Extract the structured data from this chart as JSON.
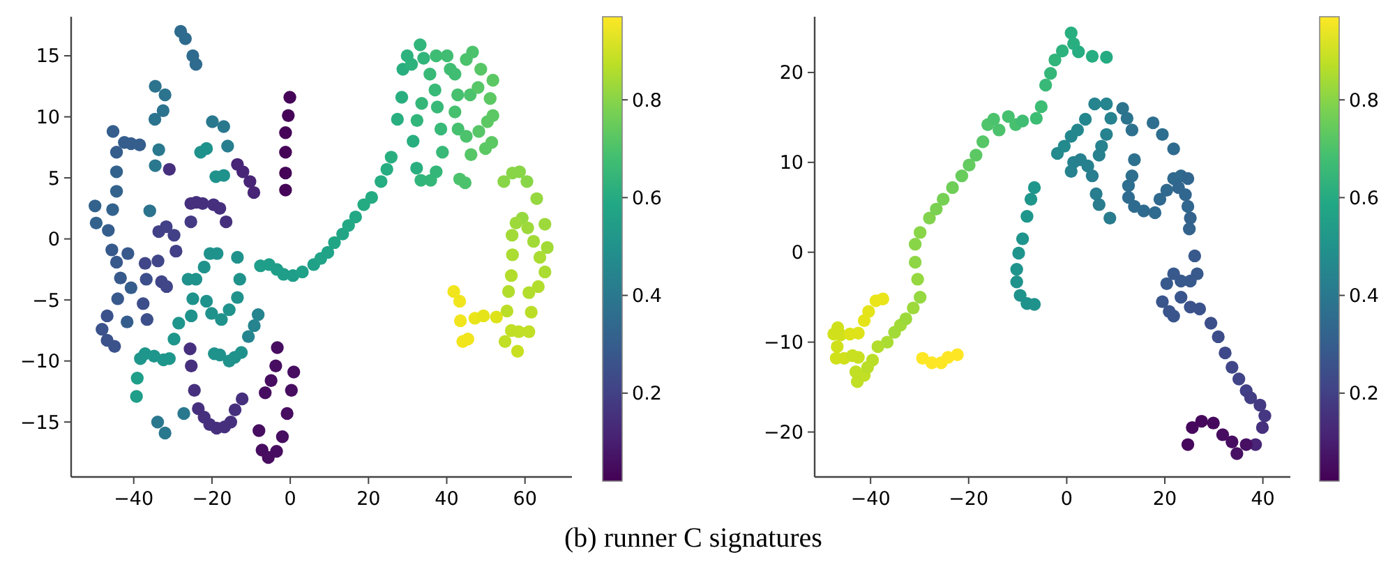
{
  "chart_data": [
    {
      "type": "scatter",
      "xlim": [
        -56,
        72
      ],
      "ylim": [
        -19.5,
        18.2
      ],
      "xticks": [
        -40,
        -20,
        0,
        20,
        40,
        60
      ],
      "yticks": [
        -15,
        -10,
        -5,
        0,
        5,
        10,
        15
      ],
      "clim": [
        0.02,
        0.97
      ],
      "cticks": [
        0.2,
        0.4,
        0.6,
        0.8
      ],
      "marker": "circle",
      "annotations": [
        "(b) runner C signatures"
      ],
      "x": [
        -28.0,
        -26.8,
        -24.9,
        -24.1,
        -34.5,
        -32.0,
        -32.5,
        -34.6,
        -33.6,
        -34.5,
        -30.9,
        -45.3,
        -44.4,
        -42.4,
        -40.7,
        -38.5,
        -44.4,
        -44.4,
        -45.4,
        -49.9,
        -49.6,
        -46.5,
        -45.6,
        -44.4,
        -43.4,
        -44.1,
        -46.8,
        -48.1,
        -46.8,
        -44.9,
        -40.7,
        -41.5,
        -41.7,
        -35.9,
        -33.6,
        -31.7,
        -29.7,
        -29.2,
        -37.1,
        -33.8,
        -36.8,
        -32.9,
        -31.6,
        -37.6,
        -36.6,
        -25.4,
        -24.0,
        -22.4,
        -19.6,
        -18.0,
        -16.4,
        -25.4,
        -13.5,
        -12.1,
        -10.3,
        -9.3,
        -19.9,
        -17.0,
        -16.0,
        -22.9,
        -21.4,
        -19.0,
        -17.0,
        -20.5,
        -18.7,
        -13.5,
        -22.0,
        -26.1,
        -24.1,
        -12.9,
        -24.9,
        -21.4,
        -20.1,
        -17.6,
        -15.6,
        -13.5,
        -25.3,
        -28.5,
        -29.7,
        -8.2,
        -9.2,
        -10.7,
        -19.4,
        -18.0,
        -15.6,
        -14.2,
        -12.5,
        -38.3,
        -37.1,
        -34.8,
        -32.4,
        -30.9,
        -39.1,
        -39.3,
        -33.9,
        -32.0,
        -27.2,
        -25.6,
        -25.3,
        -24.5,
        -23.5,
        -22.0,
        -20.6,
        -18.8,
        -16.8,
        -15.2,
        -14.1,
        -12.3,
        -3.3,
        -3.7,
        -4.9,
        -6.4,
        -8.0,
        -7.2,
        -5.6,
        -3.5,
        -2.0,
        -0.8,
        0.3,
        0.9,
        -0.1,
        -0.5,
        -1.2,
        -1.2,
        -1.2,
        -1.2,
        -7.6,
        -5.4,
        -3.4,
        -1.7,
        0.7,
        3.1,
        6.0,
        7.8,
        9.6,
        11.3,
        13.4,
        14.9,
        16.7,
        18.8,
        20.8,
        23.2,
        24.7,
        25.8,
        27.4,
        28.5,
        28.8,
        29.9,
        31.0,
        33.2,
        34.1,
        32.3,
        31.4,
        33.4,
        35.9,
        37.3,
        32.4,
        33.6,
        35.7,
        37.0,
        37.6,
        38.5,
        38.9,
        37.3,
        40.1,
        40.9,
        42.1,
        42.8,
        42.1,
        42.9,
        45.0,
        46.0,
        45.0,
        46.6,
        48.7,
        48.0,
        51.8,
        51.1,
        51.8,
        50.4,
        48.2,
        46.2,
        49.9,
        51.5,
        43.3,
        44.7,
        54.6,
        56.8,
        58.6,
        60.5,
        63.0,
        59.3,
        57.7,
        60.7,
        65.1,
        56.7,
        62.2,
        65.7,
        56.8,
        63.8,
        65.1,
        56.5,
        55.8,
        63.4,
        61.0,
        55.4,
        61.6,
        56.5,
        58.4,
        61.0,
        54.9,
        58.1,
        41.8,
        43.3,
        43.5,
        44.1,
        45.4,
        47.2,
        49.4,
        52.7
      ],
      "values": [
        17.0,
        16.4,
        15.0,
        14.3,
        12.5,
        11.8,
        10.5,
        9.8,
        7.3,
        6.0,
        5.7,
        8.8,
        7.1,
        7.9,
        7.8,
        7.7,
        5.5,
        3.9,
        2.4,
        2.7,
        1.3,
        0.7,
        -0.9,
        -1.9,
        -3.2,
        -4.9,
        -6.3,
        -7.4,
        -8.3,
        -8.8,
        -4.0,
        -1.2,
        -6.8,
        2.3,
        0.6,
        1.0,
        0.3,
        -1.0,
        -2.0,
        -1.8,
        -3.3,
        -3.5,
        -3.9,
        -5.3,
        -6.6,
        2.9,
        3.0,
        2.9,
        2.8,
        2.5,
        1.4,
        1.4,
        6.1,
        5.5,
        4.7,
        3.8,
        9.6,
        9.2,
        7.6,
        7.1,
        7.4,
        5.1,
        5.2,
        -1.2,
        -1.2,
        -1.5,
        -2.3,
        -3.3,
        -3.3,
        -3.3,
        -4.9,
        -5.1,
        -6.1,
        -6.6,
        -5.8,
        -4.8,
        -6.3,
        -6.9,
        -8.2,
        -6.2,
        -7.1,
        -8.0,
        -9.4,
        -9.5,
        -10.0,
        -9.7,
        -9.3,
        -9.8,
        -9.4,
        -9.6,
        -9.9,
        -9.8,
        -11.4,
        -12.9,
        -15.0,
        -15.9,
        -14.3,
        -9.0,
        -10.4,
        -12.4,
        -13.9,
        -14.6,
        -15.2,
        -15.5,
        -15.4,
        -15.0,
        -14.0,
        -13.1,
        -8.9,
        -10.4,
        -11.6,
        -12.6,
        -15.7,
        -17.3,
        -17.9,
        -17.4,
        -16.2,
        -14.3,
        -12.4,
        -10.9,
        11.6,
        10.1,
        8.7,
        7.1,
        5.4,
        4.0,
        -2.2,
        -2.1,
        -2.5,
        -2.9,
        -3.0,
        -2.7,
        -2.1,
        -1.6,
        -1.1,
        -0.3,
        0.4,
        1.1,
        1.8,
        2.8,
        3.4,
        4.7,
        5.7,
        6.7,
        9.8,
        11.6,
        13.9,
        15.0,
        14.3,
        15.9,
        14.8,
        5.8,
        8.0,
        4.8,
        4.8,
        5.5,
        9.7,
        11.1,
        13.5,
        12.2,
        10.8,
        9.0,
        7.1,
        15.0,
        15.0,
        13.9,
        13.5,
        11.8,
        10.4,
        9.0,
        8.4,
        11.8,
        14.7,
        15.3,
        13.9,
        12.4,
        13.0,
        11.5,
        10.1,
        9.6,
        8.8,
        6.9,
        7.4,
        7.9,
        4.9,
        4.6,
        4.7,
        5.4,
        5.5,
        4.7,
        3.3,
        1.7,
        1.3,
        0.9,
        1.2,
        0.3,
        -0.2,
        -0.7,
        -1.3,
        -1.5,
        -2.7,
        -3.0,
        -4.3,
        -3.9,
        -4.4,
        -5.9,
        -6.0,
        -7.5,
        -7.6,
        -7.6,
        -8.4,
        -9.2,
        -4.3,
        -5.1,
        -6.7,
        -8.4,
        -8.2,
        -6.5,
        -6.3,
        -6.4
      ],
      "cvalues": [
        0.35,
        0.35,
        0.35,
        0.35,
        0.38,
        0.38,
        0.38,
        0.38,
        0.4,
        0.4,
        0.15,
        0.3,
        0.3,
        0.3,
        0.3,
        0.3,
        0.32,
        0.32,
        0.32,
        0.32,
        0.32,
        0.3,
        0.28,
        0.28,
        0.28,
        0.28,
        0.26,
        0.26,
        0.26,
        0.26,
        0.3,
        0.28,
        0.3,
        0.38,
        0.2,
        0.2,
        0.2,
        0.2,
        0.22,
        0.22,
        0.25,
        0.22,
        0.22,
        0.25,
        0.25,
        0.15,
        0.15,
        0.15,
        0.15,
        0.15,
        0.15,
        0.18,
        0.12,
        0.12,
        0.12,
        0.12,
        0.4,
        0.4,
        0.42,
        0.5,
        0.5,
        0.5,
        0.5,
        0.5,
        0.5,
        0.5,
        0.5,
        0.5,
        0.5,
        0.5,
        0.5,
        0.5,
        0.5,
        0.5,
        0.5,
        0.5,
        0.5,
        0.52,
        0.52,
        0.45,
        0.45,
        0.45,
        0.5,
        0.5,
        0.5,
        0.5,
        0.5,
        0.52,
        0.52,
        0.52,
        0.52,
        0.52,
        0.55,
        0.55,
        0.4,
        0.4,
        0.4,
        0.15,
        0.15,
        0.15,
        0.15,
        0.15,
        0.15,
        0.15,
        0.15,
        0.15,
        0.15,
        0.15,
        0.05,
        0.05,
        0.05,
        0.05,
        0.05,
        0.05,
        0.05,
        0.05,
        0.05,
        0.05,
        0.05,
        0.05,
        0.03,
        0.03,
        0.03,
        0.03,
        0.03,
        0.03,
        0.55,
        0.55,
        0.55,
        0.55,
        0.55,
        0.56,
        0.56,
        0.57,
        0.57,
        0.58,
        0.58,
        0.59,
        0.59,
        0.6,
        0.6,
        0.61,
        0.61,
        0.62,
        0.62,
        0.62,
        0.62,
        0.63,
        0.63,
        0.64,
        0.64,
        0.62,
        0.62,
        0.64,
        0.65,
        0.65,
        0.64,
        0.65,
        0.66,
        0.66,
        0.66,
        0.66,
        0.66,
        0.67,
        0.68,
        0.68,
        0.68,
        0.69,
        0.69,
        0.69,
        0.7,
        0.7,
        0.7,
        0.7,
        0.72,
        0.72,
        0.73,
        0.73,
        0.73,
        0.73,
        0.72,
        0.72,
        0.73,
        0.73,
        0.7,
        0.7,
        0.8,
        0.8,
        0.8,
        0.8,
        0.82,
        0.82,
        0.83,
        0.83,
        0.83,
        0.84,
        0.84,
        0.84,
        0.85,
        0.85,
        0.85,
        0.86,
        0.86,
        0.86,
        0.86,
        0.87,
        0.87,
        0.88,
        0.88,
        0.88,
        0.88,
        0.89,
        0.95,
        0.95,
        0.95,
        0.95,
        0.95,
        0.94,
        0.93,
        0.92
      ]
    },
    {
      "type": "scatter",
      "xlim": [
        -51.4,
        45.6
      ],
      "ylim": [
        -25,
        26.2
      ],
      "xticks": [
        -40,
        -20,
        0,
        20,
        40
      ],
      "yticks": [
        -20,
        -10,
        0,
        10,
        20
      ],
      "clim": [
        0.02,
        0.97
      ],
      "cticks": [
        0.2,
        0.4,
        0.6,
        0.8
      ],
      "marker": "circle",
      "x": [
        -47.5,
        -46.7,
        -46.1,
        -46.8,
        -47.0,
        -45.4,
        -43.7,
        -42.5,
        -43.0,
        -42.7,
        -41.3,
        -40.6,
        -39.6,
        -44.2,
        -42.5,
        -41.3,
        -40.4,
        -38.9,
        -37.5,
        -38.5,
        -36.6,
        -35.1,
        -33.9,
        -32.8,
        -31.3,
        -29.9,
        -30.4,
        -30.9,
        -30.9,
        -29.9,
        -28.0,
        -26.6,
        -25.2,
        -23.3,
        -21.4,
        -19.9,
        -18.5,
        -17.1,
        -16.1,
        -14.9,
        -13.8,
        -11.9,
        -10.4,
        -9.0,
        -6.2,
        -5.2,
        -4.3,
        -3.3,
        -2.4,
        -0.9,
        0.9,
        1.4,
        2.4,
        5.2,
        8.1,
        -29.4,
        -27.5,
        -25.6,
        -24.2,
        -22.3,
        -6.6,
        -7.3,
        -8.1,
        -9.0,
        -9.8,
        -10.2,
        -10.2,
        -9.5,
        -8.1,
        -6.6,
        -1.9,
        -0.5,
        0.9,
        2.2,
        3.8,
        5.7,
        8.1,
        9.0,
        8.1,
        7.1,
        6.6,
        1.4,
        0.9,
        2.8,
        4.3,
        5.2,
        6.0,
        6.6,
        8.8,
        11.4,
        12.3,
        13.3,
        13.8,
        13.3,
        12.6,
        12.6,
        13.8,
        15.7,
        18.0,
        19.0,
        20.4,
        21.8,
        23.3,
        24.7,
        22.8,
        24.2,
        24.7,
        25.2,
        25.0,
        17.6,
        19.5,
        21.8,
        26.1,
        26.6,
        25.2,
        23.3,
        21.8,
        20.4,
        19.5,
        20.9,
        21.8,
        23.3,
        25.2,
        27.1,
        29.4,
        30.9,
        32.3,
        33.7,
        35.1,
        36.6,
        37.5,
        39.4,
        40.4,
        39.9,
        38.5,
        36.6,
        34.7,
        33.7,
        31.8,
        29.9,
        27.5,
        25.6,
        24.7
      ],
      "values": [
        -9.1,
        -8.4,
        -9.2,
        -10.5,
        -11.8,
        -11.8,
        -11.5,
        -11.7,
        -13.3,
        -14.4,
        -13.7,
        -12.8,
        -12.0,
        -9.1,
        -9.0,
        -7.6,
        -6.6,
        -5.4,
        -5.2,
        -10.5,
        -10.0,
        -8.9,
        -8.1,
        -7.4,
        -6.2,
        -5.0,
        -3.0,
        -1.1,
        0.9,
        2.2,
        3.8,
        4.8,
        5.9,
        7.2,
        8.5,
        9.7,
        10.8,
        12.3,
        14.2,
        14.8,
        13.6,
        15.1,
        14.2,
        14.6,
        14.9,
        16.2,
        18.6,
        19.9,
        21.4,
        22.4,
        24.4,
        23.2,
        22.3,
        21.8,
        21.7,
        -11.8,
        -12.3,
        -12.3,
        -11.7,
        -11.4,
        7.2,
        5.9,
        4.0,
        1.5,
        -0.1,
        -1.9,
        -3.3,
        -4.8,
        -5.7,
        -5.8,
        11.0,
        11.8,
        12.9,
        13.6,
        14.8,
        16.5,
        16.5,
        14.9,
        13.1,
        11.8,
        10.8,
        10.0,
        9.0,
        10.3,
        9.6,
        8.5,
        6.5,
        5.3,
        3.8,
        16.0,
        14.9,
        13.6,
        10.3,
        8.5,
        7.4,
        6.1,
        5.1,
        4.6,
        4.4,
        5.9,
        6.9,
        8.2,
        8.5,
        8.2,
        7.2,
        6.4,
        5.1,
        3.8,
        2.6,
        14.4,
        13.1,
        11.5,
        -0.4,
        -2.4,
        -3.2,
        -3.2,
        -2.4,
        -3.5,
        -5.5,
        -6.6,
        -7.1,
        -5.0,
        -6.1,
        -6.3,
        -7.9,
        -9.4,
        -11.2,
        -12.8,
        -14.1,
        -15.4,
        -16.2,
        -17.0,
        -18.2,
        -19.5,
        -21.4,
        -21.4,
        -22.4,
        -21.1,
        -20.3,
        -19.0,
        -18.8,
        -19.5,
        -21.4
      ],
      "cvalues": [
        0.9,
        0.9,
        0.9,
        0.9,
        0.9,
        0.9,
        0.89,
        0.89,
        0.88,
        0.88,
        0.88,
        0.87,
        0.87,
        0.92,
        0.92,
        0.93,
        0.93,
        0.94,
        0.94,
        0.86,
        0.85,
        0.84,
        0.84,
        0.83,
        0.83,
        0.82,
        0.82,
        0.81,
        0.8,
        0.8,
        0.79,
        0.78,
        0.77,
        0.76,
        0.75,
        0.74,
        0.73,
        0.72,
        0.71,
        0.7,
        0.7,
        0.69,
        0.69,
        0.68,
        0.67,
        0.67,
        0.66,
        0.65,
        0.64,
        0.63,
        0.62,
        0.62,
        0.61,
        0.61,
        0.6,
        0.97,
        0.97,
        0.97,
        0.97,
        0.97,
        0.52,
        0.52,
        0.52,
        0.51,
        0.51,
        0.51,
        0.5,
        0.5,
        0.5,
        0.5,
        0.47,
        0.47,
        0.46,
        0.46,
        0.46,
        0.45,
        0.45,
        0.44,
        0.44,
        0.44,
        0.43,
        0.44,
        0.44,
        0.43,
        0.43,
        0.42,
        0.42,
        0.41,
        0.41,
        0.38,
        0.38,
        0.37,
        0.37,
        0.36,
        0.36,
        0.35,
        0.35,
        0.35,
        0.35,
        0.34,
        0.34,
        0.34,
        0.34,
        0.33,
        0.33,
        0.33,
        0.33,
        0.32,
        0.32,
        0.36,
        0.36,
        0.35,
        0.28,
        0.28,
        0.28,
        0.28,
        0.28,
        0.28,
        0.27,
        0.27,
        0.27,
        0.27,
        0.26,
        0.26,
        0.25,
        0.24,
        0.23,
        0.22,
        0.21,
        0.2,
        0.19,
        0.18,
        0.17,
        0.15,
        0.12,
        0.06,
        0.06,
        0.05,
        0.05,
        0.04,
        0.04,
        0.04,
        0.04
      ]
    }
  ]
}
